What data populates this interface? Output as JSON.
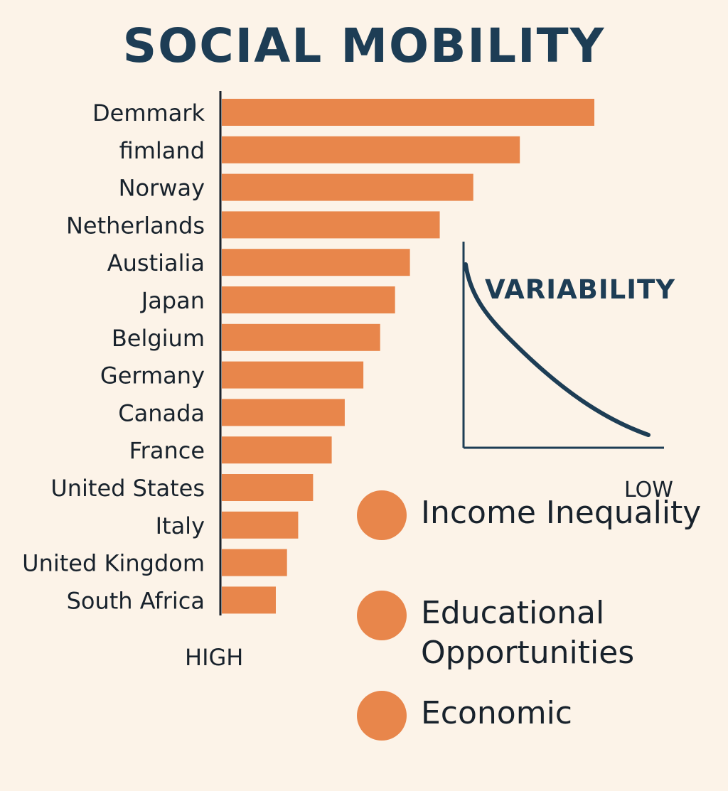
{
  "chart_data": {
    "type": "bar",
    "orientation": "horizontal",
    "title": "SOCIAL MOBILITY",
    "categories": [
      "Demmark",
      "fimland",
      "Norway",
      "Netherlands",
      "Austialia",
      "Japan",
      "Belgium",
      "Germany",
      "Canada",
      "France",
      "United  States",
      "Italy",
      "United Kingdom",
      "South Africa"
    ],
    "values": [
      100,
      80,
      67.5,
      58.5,
      50.5,
      46.5,
      42.5,
      38,
      33,
      29.5,
      24.5,
      20.5,
      17.5,
      14.5
    ],
    "axis_low_label": "HIGH",
    "bar_color": "#e8864b",
    "axis_color": "#18222c"
  },
  "inset": {
    "title": "VARIABILITY",
    "low_label": "LOW",
    "line_color": "#1d3d55",
    "curve": "decreasing"
  },
  "legend": {
    "items": [
      {
        "label": "Income Inequality",
        "color": "#e8864b"
      },
      {
        "label": "Educational Opportunities",
        "color": "#e8864b"
      },
      {
        "label": "Economic",
        "color": "#e8864b"
      }
    ]
  }
}
